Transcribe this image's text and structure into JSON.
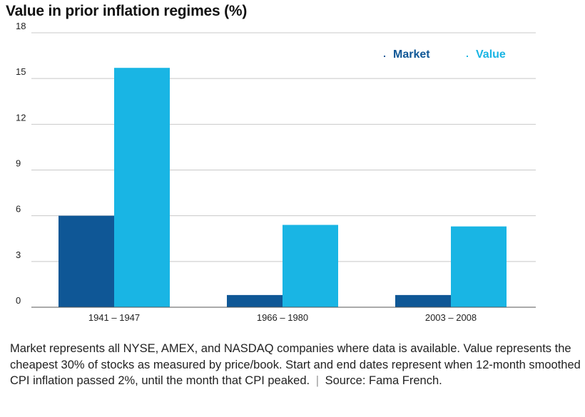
{
  "chart_data": {
    "type": "bar",
    "title": "Value in prior inflation regimes (%)",
    "xlabel": "",
    "ylabel": "",
    "categories": [
      "1941 – 1947",
      "1966 – 1980",
      "2003 – 2008"
    ],
    "series": [
      {
        "name": "Market",
        "color": "#0f5796",
        "values": [
          6.0,
          0.8,
          0.8
        ]
      },
      {
        "name": "Value",
        "color": "#19b5e4",
        "values": [
          15.7,
          5.4,
          5.3
        ]
      }
    ],
    "ylim": [
      0,
      18
    ],
    "yticks": [
      0,
      3,
      6,
      9,
      12,
      15,
      18
    ],
    "grid": true,
    "legend_position": "top-right"
  },
  "footnote": {
    "text": "Market represents all NYSE, AMEX, and NASDAQ companies where data is available. Value represents the cheapest 30% of stocks as measured by price/book. Start and end dates represent when 12-month smoothed CPI inflation passed 2%, until the month that CPI peaked.",
    "separator": "|",
    "source": "Source: Fama French."
  }
}
